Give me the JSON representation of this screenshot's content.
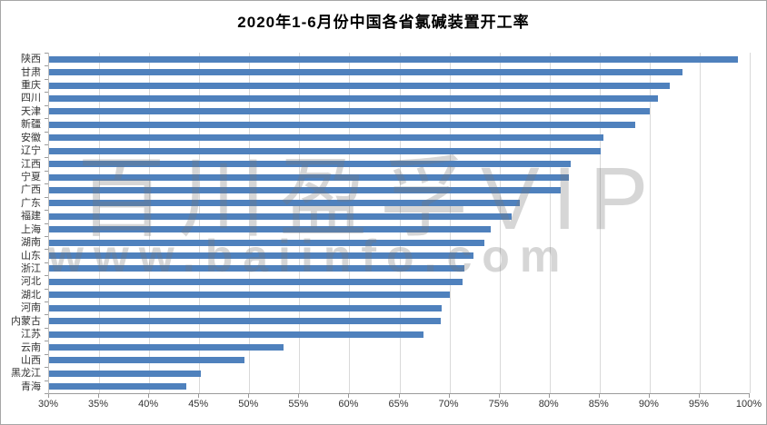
{
  "title": "2020年1-6月份中国各省氯碱装置开工率",
  "watermark": {
    "line1": "百川盈孚VIP",
    "line2": "www.baiinfo.com"
  },
  "chart_data": {
    "type": "bar",
    "orientation": "horizontal",
    "title": "2020年1-6月份中国各省氯碱装置开工率",
    "categories": [
      "陕西",
      "甘肃",
      "重庆",
      "四川",
      "天津",
      "新疆",
      "安徽",
      "辽宁",
      "江西",
      "宁夏",
      "广西",
      "广东",
      "福建",
      "上海",
      "湖南",
      "山东",
      "浙江",
      "河北",
      "湖北",
      "河南",
      "内蒙古",
      "江苏",
      "云南",
      "山西",
      "黑龙江",
      "青海"
    ],
    "values": [
      98.8,
      93.3,
      92.0,
      90.8,
      90.0,
      88.6,
      85.4,
      85.1,
      82.1,
      81.9,
      81.1,
      77.0,
      76.2,
      74.1,
      73.5,
      72.4,
      71.5,
      71.3,
      70.0,
      69.2,
      69.1,
      67.4,
      53.4,
      49.5,
      45.2,
      43.7
    ],
    "unit": "%",
    "xlim": [
      30,
      100
    ],
    "x_tick_step": 5,
    "x_tick_labels": [
      "30%",
      "35%",
      "40%",
      "45%",
      "50%",
      "55%",
      "60%",
      "65%",
      "70%",
      "75%",
      "80%",
      "85%",
      "90%",
      "95%",
      "100%"
    ],
    "grid": true,
    "legend": false,
    "bar_color": "#4f81bd",
    "gridline_color": "#d9d9d9",
    "axis_color": "#9b9b9b",
    "text_color": "#333333"
  }
}
